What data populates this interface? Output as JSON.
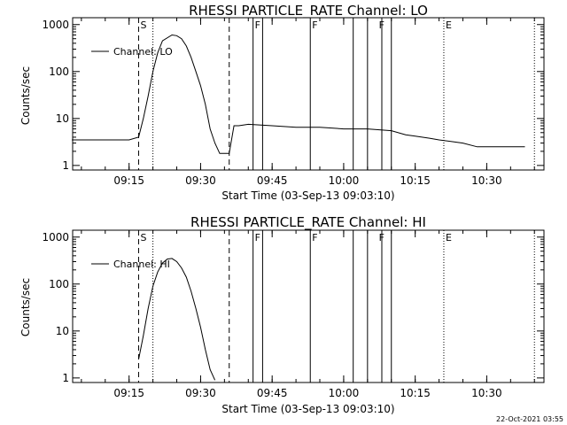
{
  "plots": [
    {
      "title": "RHESSI PARTICLE_RATE Channel: LO",
      "ylabel": "Counts/sec",
      "xlabel": "Start Time (03-Sep-13 09:03:10)",
      "legend": "Channel: LO"
    },
    {
      "title": "RHESSI PARTICLE_RATE Channel: HI",
      "ylabel": "Counts/sec",
      "xlabel": "Start Time (03-Sep-13 09:03:10)",
      "legend": "Channel: HI"
    }
  ],
  "timestamp": "22-Oct-2021 03:55",
  "chart_data": [
    {
      "type": "line",
      "title": "RHESSI PARTICLE_RATE Channel: LO",
      "xlabel": "Start Time (03-Sep-13 09:03:10)",
      "ylabel": "Counts/sec",
      "yscale": "log",
      "xlim": [
        "09:03:10",
        "10:42"
      ],
      "ylim": [
        0.8,
        1400
      ],
      "x_ticks": [
        "09:15",
        "09:30",
        "09:45",
        "10:00",
        "10:15",
        "10:30"
      ],
      "y_ticks": [
        "1",
        "10",
        "100",
        "1000"
      ],
      "legend": "top-left",
      "series": [
        {
          "name": "Channel: LO",
          "x": [
            "09:03",
            "09:06",
            "09:09",
            "09:12",
            "09:15",
            "09:17",
            "09:18",
            "09:19",
            "09:20",
            "09:21",
            "09:22",
            "09:24",
            "09:25",
            "09:26",
            "09:27",
            "09:28",
            "09:29",
            "09:30",
            "09:31",
            "09:32",
            "09:33",
            "09:34",
            "09:35",
            "09:36",
            "09:37",
            "09:38",
            "09:40",
            "09:45",
            "09:50",
            "09:55",
            "10:00",
            "10:05",
            "10:10",
            "10:13",
            "10:15",
            "10:18",
            "10:20",
            "10:23",
            "10:25",
            "10:28",
            "10:30",
            "10:33",
            "10:35",
            "10:38"
          ],
          "values": [
            3.5,
            3.5,
            3.5,
            3.5,
            3.5,
            4,
            10,
            30,
            100,
            250,
            450,
            600,
            580,
            500,
            350,
            200,
            100,
            50,
            20,
            6,
            3,
            1.8,
            1.8,
            1.8,
            7,
            7,
            7.5,
            7,
            6.5,
            6.5,
            6,
            6,
            5.5,
            4.5,
            4.2,
            3.8,
            3.5,
            3.2,
            3,
            2.5,
            2.5,
            2.5,
            2.5,
            2.5
          ]
        }
      ],
      "annotations": {
        "S": "09:17",
        "F": [
          "09:41",
          "09:53",
          "10:07"
        ],
        "E": "10:21",
        "dashed_lines": [
          "09:17",
          "09:36"
        ],
        "dotted_lines": [
          "09:20",
          "10:21",
          "10:40"
        ],
        "solid_lines": [
          "09:41",
          "09:43",
          "09:53",
          "10:02",
          "10:05",
          "10:08",
          "10:10"
        ]
      }
    },
    {
      "type": "line",
      "title": "RHESSI PARTICLE_RATE Channel: HI",
      "xlabel": "Start Time (03-Sep-13 09:03:10)",
      "ylabel": "Counts/sec",
      "yscale": "log",
      "xlim": [
        "09:03:10",
        "10:42"
      ],
      "ylim": [
        0.8,
        1400
      ],
      "x_ticks": [
        "09:15",
        "09:30",
        "09:45",
        "10:00",
        "10:15",
        "10:30"
      ],
      "y_ticks": [
        "1",
        "10",
        "100",
        "1000"
      ],
      "legend": "top-left",
      "series": [
        {
          "name": "Channel: HI",
          "x": [
            "09:17",
            "09:18",
            "09:19",
            "09:20",
            "09:21",
            "09:22",
            "09:23",
            "09:24",
            "09:25",
            "09:26",
            "09:27",
            "09:28",
            "09:29",
            "09:30",
            "09:31",
            "09:32",
            "09:33"
          ],
          "values": [
            2.5,
            8,
            30,
            90,
            180,
            280,
            340,
            350,
            300,
            220,
            140,
            70,
            30,
            12,
            4,
            1.5,
            0.9
          ]
        }
      ],
      "annotations": {
        "S": "09:17",
        "F": [
          "09:41",
          "09:53",
          "10:07"
        ],
        "E": "10:21",
        "dashed_lines": [
          "09:17",
          "09:36"
        ],
        "dotted_lines": [
          "09:20",
          "10:21",
          "10:40"
        ],
        "solid_lines": [
          "09:41",
          "09:43",
          "09:53",
          "10:02",
          "10:05",
          "10:08",
          "10:10"
        ]
      }
    }
  ]
}
